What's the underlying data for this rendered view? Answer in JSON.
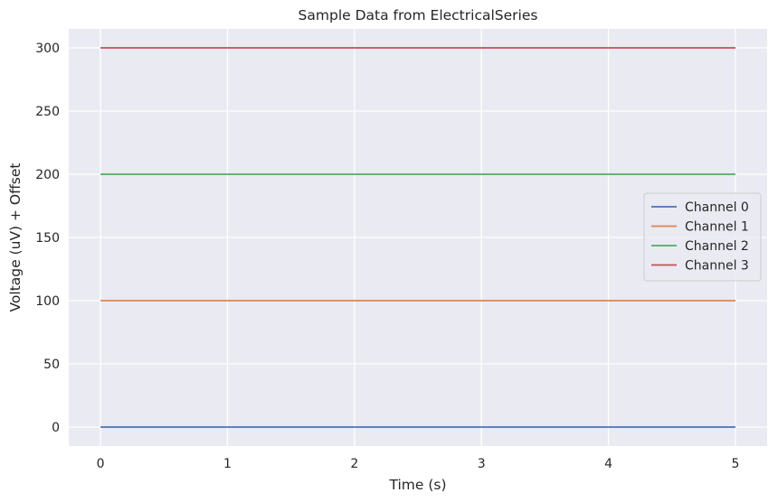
{
  "chart_data": {
    "type": "line",
    "title": "Sample Data from ElectricalSeries",
    "xlabel": "Time (s)",
    "ylabel": "Voltage (uV) + Offset",
    "xlim": [
      -0.25,
      5.25
    ],
    "ylim": [
      -15,
      315
    ],
    "xticks": [
      0,
      1,
      2,
      3,
      4,
      5
    ],
    "yticks": [
      0,
      50,
      100,
      150,
      200,
      250,
      300
    ],
    "grid": true,
    "legend_position": "center-right",
    "background_color": "#eaeaf2",
    "grid_color": "#ffffff",
    "x": [
      0,
      5
    ],
    "series": [
      {
        "name": "Channel 0",
        "color": "#4c72b0",
        "values": [
          0,
          0
        ]
      },
      {
        "name": "Channel 1",
        "color": "#dd8452",
        "values": [
          100,
          100
        ]
      },
      {
        "name": "Channel 2",
        "color": "#55a868",
        "values": [
          200,
          200
        ]
      },
      {
        "name": "Channel 3",
        "color": "#c44e52",
        "values": [
          300,
          300
        ]
      }
    ]
  }
}
